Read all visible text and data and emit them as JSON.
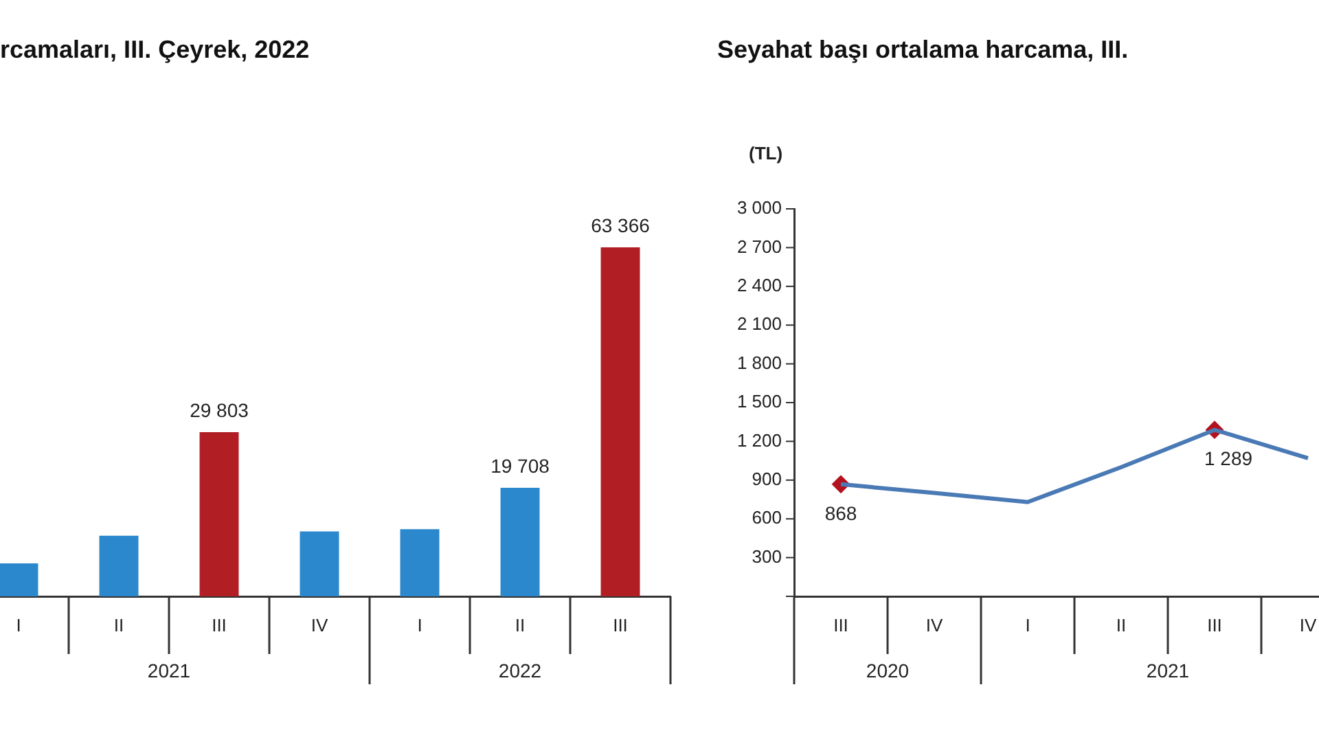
{
  "chart_data": [
    {
      "type": "bar",
      "title": "rcamaları, III. Çeyrek, 2022",
      "tick_labels": "x",
      "categories": [
        "I",
        "II",
        "III",
        "IV",
        "I",
        "II",
        "III"
      ],
      "values": [
        6000,
        11000,
        29803,
        11800,
        12200,
        19708,
        63366
      ],
      "colors": [
        "#2b88cc",
        "#2b88cc",
        "#b11f24",
        "#2b88cc",
        "#2b88cc",
        "#2b88cc",
        "#b11f24"
      ],
      "value_labels": [
        null,
        null,
        "29 803",
        null,
        null,
        "19 708",
        "63 366"
      ],
      "annotations": [
        "2021",
        "2022"
      ],
      "grid": false,
      "legend": false
    },
    {
      "type": "line",
      "title": "Seyahat başı ortalama harcama, III.",
      "ylabel": "(TL)",
      "categories": [
        "III",
        "IV",
        "I",
        "II",
        "III",
        "IV"
      ],
      "series": [
        {
          "color": "#4a7ab5",
          "values": [
            868,
            800,
            730,
            1000,
            1289,
            1070
          ],
          "marker": "none"
        },
        {
          "type": "scatter",
          "color": "#b3121f",
          "values": [
            868,
            null,
            null,
            null,
            1289,
            null
          ],
          "marker": "diamond",
          "value_labels": [
            "868",
            null,
            null,
            null,
            "1 289",
            null
          ]
        }
      ],
      "ylim": [
        0,
        3000
      ],
      "yticks": [
        {
          "value": 0,
          "label": null
        },
        300,
        600,
        900,
        1200,
        1500,
        1800,
        2100,
        2400,
        2700,
        3000
      ],
      "annotations": [
        "2020",
        "2021"
      ],
      "grid": false,
      "legend": false
    }
  ]
}
